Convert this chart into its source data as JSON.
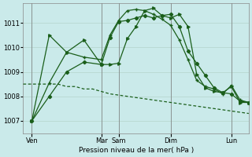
{
  "background_color": "#caeaea",
  "grid_color": "#b8d8d0",
  "line_color": "#1a5e1a",
  "title": "Pression niveau de la mer( hPa )",
  "ylim": [
    1006.5,
    1011.8
  ],
  "yticks": [
    1007,
    1008,
    1009,
    1010,
    1011
  ],
  "xlim": [
    0,
    312
  ],
  "xtick_positions": [
    12,
    108,
    132,
    204,
    288
  ],
  "xtick_labels": [
    "Ven",
    "Mar",
    "Sam",
    "Dim",
    "Lun"
  ],
  "vline_positions": [
    12,
    108,
    132,
    204,
    288
  ],
  "series_dotted_x": [
    0,
    12,
    24,
    36,
    48,
    60,
    72,
    84,
    96,
    108,
    120,
    132,
    144,
    156,
    168,
    180,
    192,
    204,
    216,
    228,
    240,
    252,
    264,
    276,
    288,
    300,
    312
  ],
  "series_dotted_y": [
    1008.5,
    1008.5,
    1008.5,
    1008.5,
    1008.5,
    1008.4,
    1008.4,
    1008.3,
    1008.3,
    1008.2,
    1008.1,
    1008.05,
    1008.0,
    1007.95,
    1007.9,
    1007.85,
    1007.8,
    1007.75,
    1007.7,
    1007.65,
    1007.6,
    1007.55,
    1007.5,
    1007.45,
    1007.4,
    1007.35,
    1007.3
  ],
  "series_diamond_x": [
    12,
    36,
    60,
    84,
    108,
    120,
    132,
    144,
    156,
    168,
    180,
    192,
    204,
    216,
    228,
    240,
    252,
    264,
    276,
    288,
    300,
    312
  ],
  "series_diamond_y": [
    1007.0,
    1008.0,
    1009.0,
    1009.4,
    1009.3,
    1010.4,
    1011.05,
    1011.1,
    1011.2,
    1011.3,
    1011.2,
    1011.3,
    1011.35,
    1010.85,
    1009.85,
    1009.35,
    1008.85,
    1008.35,
    1008.15,
    1008.1,
    1007.8,
    1007.75
  ],
  "series_cross_x": [
    12,
    36,
    60,
    84,
    108,
    120,
    132,
    144,
    156,
    168,
    180,
    192,
    204,
    216,
    228,
    240,
    252,
    264,
    276,
    288,
    300,
    312
  ],
  "series_cross_y": [
    1007.0,
    1008.55,
    1009.8,
    1009.6,
    1009.5,
    1010.5,
    1011.1,
    1011.5,
    1011.55,
    1011.5,
    1011.35,
    1011.15,
    1010.9,
    1010.3,
    1009.5,
    1008.65,
    1008.4,
    1008.3,
    1008.1,
    1008.45,
    1007.85,
    1007.75
  ],
  "series_tri_x": [
    12,
    36,
    60,
    84,
    108,
    120,
    132,
    144,
    156,
    168,
    180,
    192,
    204,
    216,
    228,
    240,
    252,
    264,
    276,
    288,
    300,
    312
  ],
  "series_tri_y": [
    1007.0,
    1010.5,
    1009.8,
    1010.3,
    1009.3,
    1009.3,
    1009.35,
    1010.35,
    1010.85,
    1011.5,
    1011.6,
    1011.3,
    1011.2,
    1011.35,
    1010.85,
    1008.9,
    1008.35,
    1008.2,
    1008.15,
    1008.4,
    1007.75,
    1007.75
  ]
}
